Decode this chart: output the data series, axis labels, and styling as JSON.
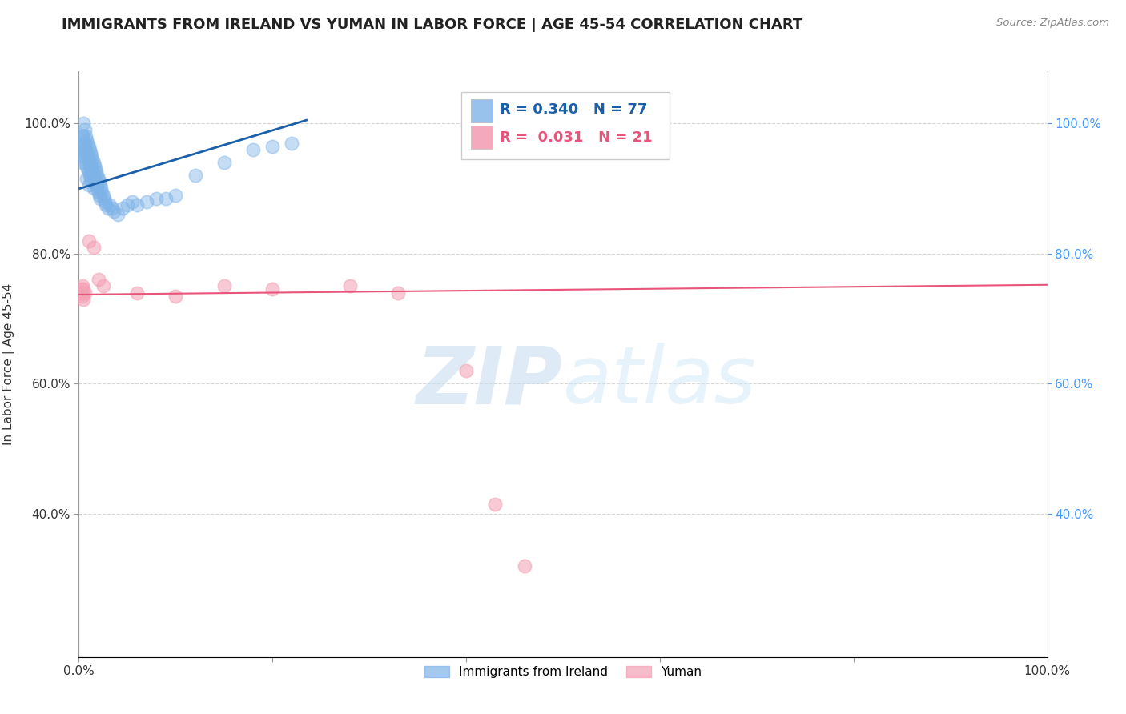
{
  "title": "IMMIGRANTS FROM IRELAND VS YUMAN IN LABOR FORCE | AGE 45-54 CORRELATION CHART",
  "source_text": "Source: ZipAtlas.com",
  "ylabel": "In Labor Force | Age 45-54",
  "xlim": [
    0.0,
    1.0
  ],
  "ylim": [
    0.18,
    1.08
  ],
  "x_ticks": [
    0.0,
    0.2,
    0.4,
    0.6,
    0.8,
    1.0
  ],
  "x_tick_labels": [
    "0.0%",
    "",
    "",
    "",
    "",
    "100.0%"
  ],
  "y_ticks": [
    0.4,
    0.6,
    0.8,
    1.0
  ],
  "y_tick_labels": [
    "40.0%",
    "60.0%",
    "80.0%",
    "100.0%"
  ],
  "ireland_R": 0.34,
  "ireland_N": 77,
  "yuman_R": 0.031,
  "yuman_N": 21,
  "ireland_color": "#7eb3e8",
  "ireland_line_color": "#1a5fa8",
  "yuman_color": "#f4a0b5",
  "yuman_line_color": "#e8547a",
  "right_axis_color": "#4499ff",
  "watermark_color": "#c8dff0",
  "background_color": "#ffffff",
  "grid_color": "#cccccc",
  "ireland_x": [
    0.002,
    0.003,
    0.003,
    0.004,
    0.004,
    0.005,
    0.005,
    0.005,
    0.006,
    0.006,
    0.006,
    0.007,
    0.007,
    0.007,
    0.008,
    0.008,
    0.008,
    0.008,
    0.009,
    0.009,
    0.009,
    0.01,
    0.01,
    0.01,
    0.01,
    0.011,
    0.011,
    0.011,
    0.012,
    0.012,
    0.012,
    0.013,
    0.013,
    0.013,
    0.014,
    0.014,
    0.015,
    0.015,
    0.015,
    0.016,
    0.016,
    0.017,
    0.017,
    0.018,
    0.018,
    0.019,
    0.019,
    0.02,
    0.02,
    0.021,
    0.021,
    0.022,
    0.022,
    0.023,
    0.024,
    0.025,
    0.026,
    0.027,
    0.028,
    0.03,
    0.032,
    0.034,
    0.036,
    0.04,
    0.045,
    0.05,
    0.055,
    0.06,
    0.07,
    0.08,
    0.09,
    0.1,
    0.12,
    0.15,
    0.18,
    0.2,
    0.22
  ],
  "ireland_y": [
    0.96,
    0.97,
    0.95,
    0.98,
    0.94,
    1.0,
    0.98,
    0.96,
    0.99,
    0.97,
    0.95,
    0.98,
    0.96,
    0.94,
    0.975,
    0.955,
    0.935,
    0.915,
    0.97,
    0.95,
    0.93,
    0.965,
    0.945,
    0.925,
    0.905,
    0.96,
    0.94,
    0.92,
    0.955,
    0.935,
    0.915,
    0.95,
    0.93,
    0.91,
    0.945,
    0.925,
    0.94,
    0.92,
    0.9,
    0.935,
    0.915,
    0.93,
    0.91,
    0.925,
    0.905,
    0.92,
    0.9,
    0.915,
    0.895,
    0.91,
    0.89,
    0.905,
    0.885,
    0.9,
    0.895,
    0.89,
    0.885,
    0.88,
    0.875,
    0.87,
    0.875,
    0.87,
    0.865,
    0.86,
    0.87,
    0.875,
    0.88,
    0.875,
    0.88,
    0.885,
    0.885,
    0.89,
    0.92,
    0.94,
    0.96,
    0.965,
    0.97
  ],
  "yuman_x": [
    0.002,
    0.003,
    0.003,
    0.004,
    0.004,
    0.005,
    0.005,
    0.006,
    0.01,
    0.015,
    0.02,
    0.025,
    0.06,
    0.1,
    0.15,
    0.2,
    0.28,
    0.33,
    0.4,
    0.43,
    0.46
  ],
  "yuman_y": [
    0.74,
    0.74,
    0.745,
    0.735,
    0.75,
    0.73,
    0.745,
    0.74,
    0.82,
    0.81,
    0.76,
    0.75,
    0.74,
    0.735,
    0.75,
    0.745,
    0.75,
    0.74,
    0.62,
    0.415,
    0.32
  ],
  "ireland_trend_x": [
    0.001,
    0.235
  ],
  "ireland_trend_y": [
    0.9,
    1.005
  ],
  "yuman_trend_x": [
    0.0,
    1.0
  ],
  "yuman_trend_y": [
    0.737,
    0.752
  ]
}
